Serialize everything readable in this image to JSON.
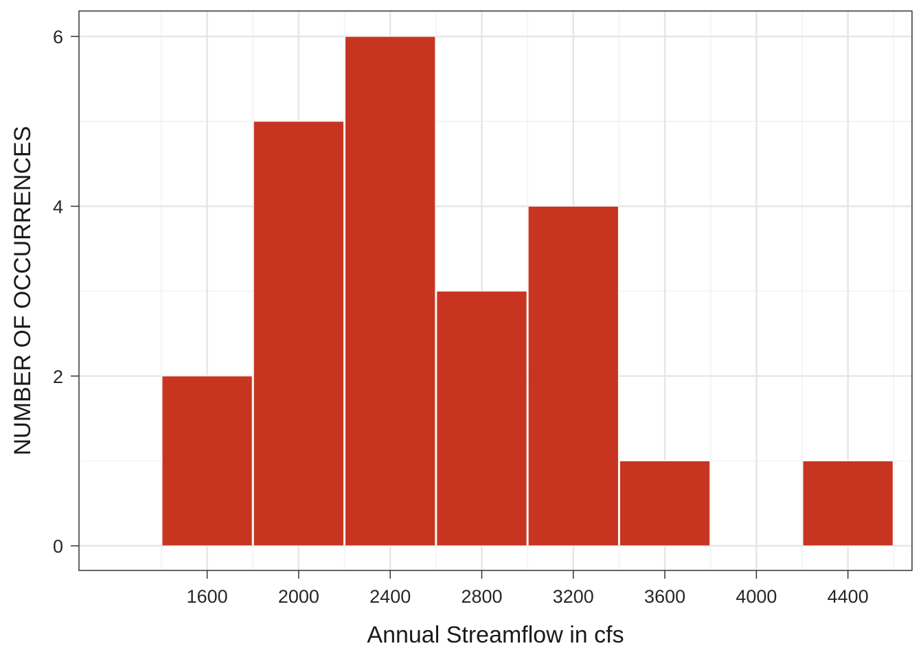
{
  "chart_data": {
    "type": "bar",
    "subtype": "histogram",
    "title": "",
    "xlabel": "Annual Streamflow in cfs",
    "ylabel": "NUMBER OF OCCURRENCES",
    "bins": [
      {
        "from": 1400,
        "to": 1800,
        "count": 2
      },
      {
        "from": 1800,
        "to": 2200,
        "count": 5
      },
      {
        "from": 2200,
        "to": 2600,
        "count": 6
      },
      {
        "from": 2600,
        "to": 3000,
        "count": 3
      },
      {
        "from": 3000,
        "to": 3400,
        "count": 4
      },
      {
        "from": 3400,
        "to": 3800,
        "count": 1
      },
      {
        "from": 3800,
        "to": 4200,
        "count": 0
      },
      {
        "from": 4200,
        "to": 4600,
        "count": 1
      }
    ],
    "x_ticks": [
      "1600",
      "2000",
      "2400",
      "2800",
      "3200",
      "3600",
      "4000",
      "4400"
    ],
    "y_ticks": [
      "0",
      "2",
      "4",
      "6"
    ],
    "xlim": [
      1040,
      4680
    ],
    "ylim": [
      -0.29,
      6.3
    ],
    "grid": true,
    "bar_color": "#c73521"
  }
}
